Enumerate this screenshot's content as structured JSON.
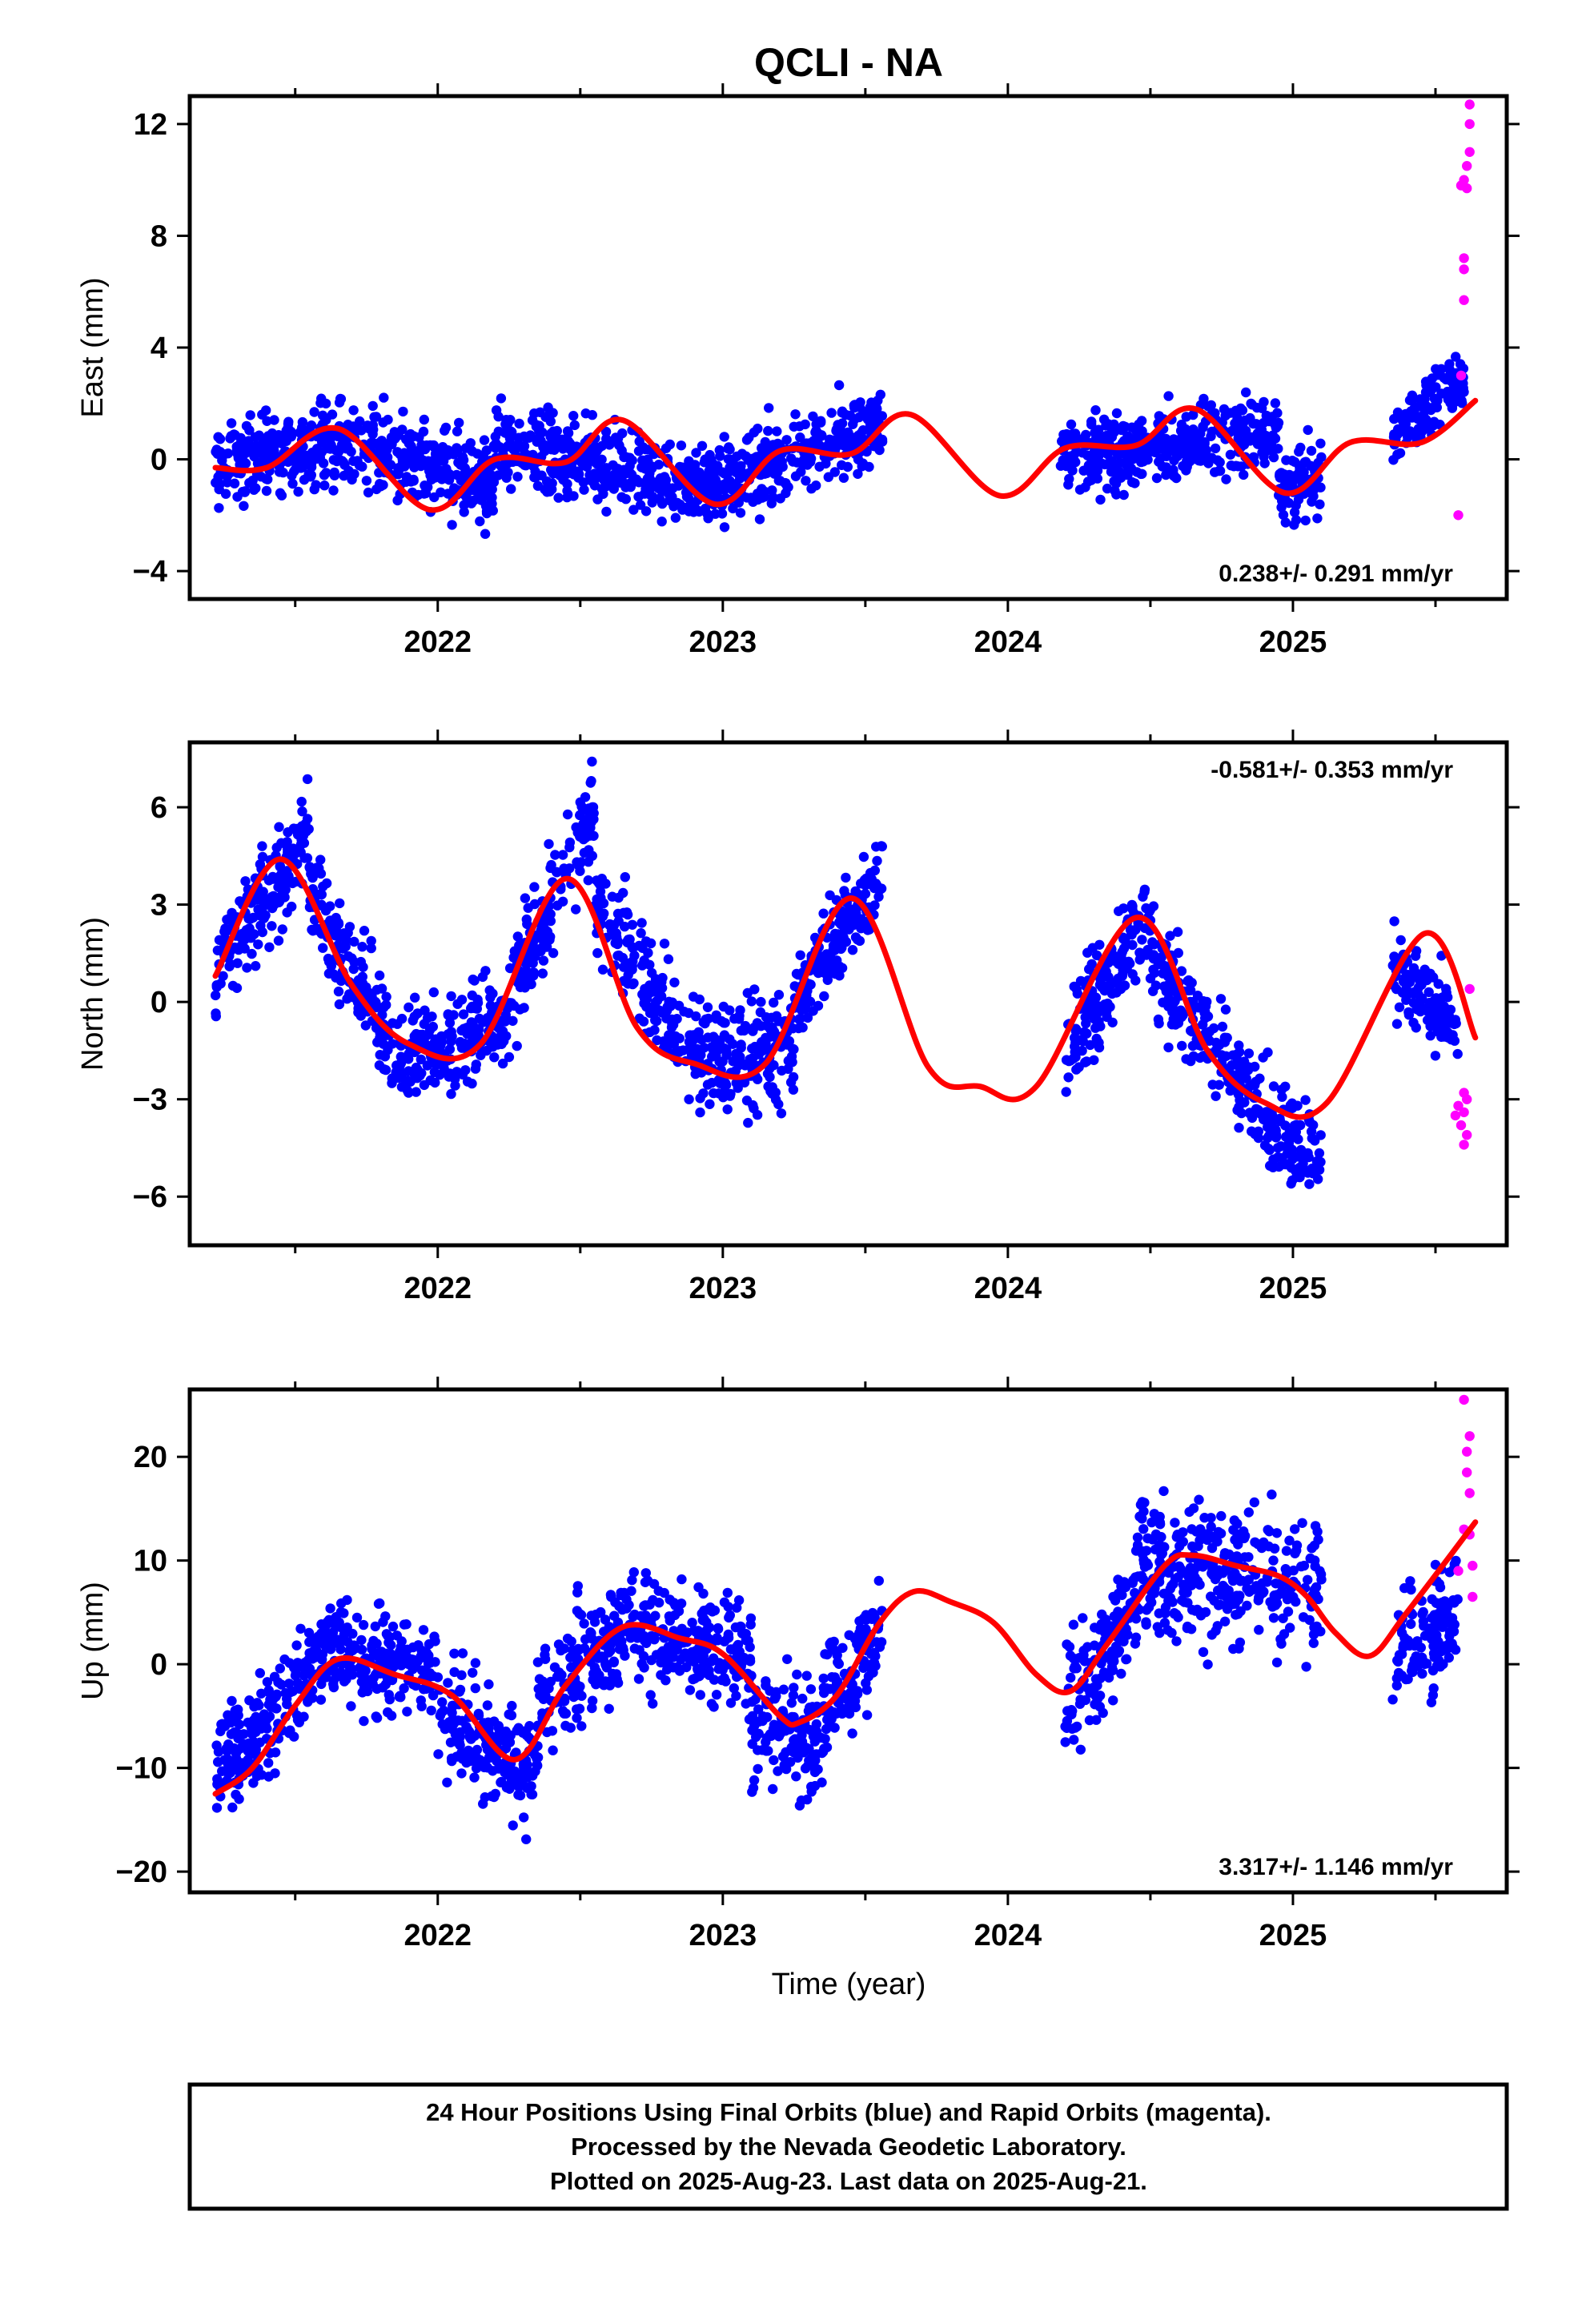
{
  "title": "QCLI - NA",
  "x_axis_label": "Time (year)",
  "footer": {
    "line1": "24 Hour Positions Using Final Orbits (blue) and Rapid Orbits (magenta).",
    "line2": "Processed by the Nevada Geodetic Laboratory.",
    "line3": "Plotted on 2025-Aug-23. Last data on 2025-Aug-21."
  },
  "colors": {
    "final_orbit": "#0000ff",
    "rapid_orbit": "#ff00ff",
    "model_fit": "#ff0000",
    "frame": "#000000"
  },
  "chart_data": [
    {
      "type": "scatter",
      "component": "east",
      "ylabel": "East (mm)",
      "xlim": [
        2021.13,
        2025.75
      ],
      "ylim": [
        -5,
        13
      ],
      "xticks": [
        2022,
        2023,
        2024,
        2025
      ],
      "yticks": [
        -4,
        0,
        4,
        8,
        12
      ],
      "rate": "0.238+/- 0.291 mm/yr",
      "fit": [
        [
          2021.22,
          -0.3
        ],
        [
          2021.4,
          -0.3
        ],
        [
          2021.65,
          1.1
        ],
        [
          2021.97,
          -1.8
        ],
        [
          2022.2,
          0.0
        ],
        [
          2022.45,
          -0.1
        ],
        [
          2022.65,
          1.4
        ],
        [
          2022.97,
          -1.6
        ],
        [
          2023.2,
          0.3
        ],
        [
          2023.45,
          0.2
        ],
        [
          2023.66,
          1.6
        ],
        [
          2023.97,
          -1.3
        ],
        [
          2024.2,
          0.4
        ],
        [
          2024.45,
          0.5
        ],
        [
          2024.66,
          1.8
        ],
        [
          2024.97,
          -1.2
        ],
        [
          2025.2,
          0.6
        ],
        [
          2025.45,
          0.6
        ],
        [
          2025.64,
          2.1
        ]
      ],
      "seasonal": {
        "amp": 1.45,
        "phase_year": 2021.65,
        "trend": 0.24
      },
      "final_segments": [
        {
          "x": [
            2021.22,
            2021.6
          ],
          "y": [
            -0.3,
            0.6
          ],
          "spread": 1.0
        },
        {
          "x": [
            2021.6,
            2022.2
          ],
          "y": [
            0.7,
            -0.8
          ],
          "spread": 1.1
        },
        {
          "x": [
            2022.2,
            2023.0
          ],
          "y": [
            0.5,
            -1.0
          ],
          "spread": 1.0
        },
        {
          "x": [
            2023.0,
            2023.56
          ],
          "y": [
            -0.8,
            1.3
          ],
          "spread": 1.0
        },
        {
          "x": [
            2024.18,
            2024.95
          ],
          "y": [
            0.0,
            1.0
          ],
          "spread": 0.9
        },
        {
          "x": [
            2024.95,
            2025.1
          ],
          "y": [
            -1.2,
            -0.5
          ],
          "spread": 0.9
        },
        {
          "x": [
            2025.35,
            2025.6
          ],
          "y": [
            0.8,
            3.0
          ],
          "spread": 0.8
        }
      ],
      "rapid": [
        [
          2025.58,
          -2.0
        ],
        [
          2025.59,
          3.0
        ],
        [
          2025.6,
          5.7
        ],
        [
          2025.6,
          6.8
        ],
        [
          2025.6,
          7.2
        ],
        [
          2025.61,
          9.7
        ],
        [
          2025.61,
          10.5
        ],
        [
          2025.62,
          11.0
        ],
        [
          2025.62,
          12.0
        ],
        [
          2025.62,
          12.7
        ],
        [
          2025.59,
          9.8
        ],
        [
          2025.6,
          10.0
        ]
      ]
    },
    {
      "type": "scatter",
      "component": "north",
      "ylabel": "North (mm)",
      "xlim": [
        2021.13,
        2025.75
      ],
      "ylim": [
        -7.5,
        8
      ],
      "xticks": [
        2022,
        2023,
        2024,
        2025
      ],
      "yticks": [
        -6,
        -3,
        0,
        3,
        6
      ],
      "rate": "-0.581+/- 0.353 mm/yr",
      "fit": [
        [
          2021.22,
          0.8
        ],
        [
          2021.45,
          4.4
        ],
        [
          2021.7,
          0.5
        ],
        [
          2021.9,
          -1.3
        ],
        [
          2022.15,
          -1.3
        ],
        [
          2022.45,
          3.8
        ],
        [
          2022.7,
          -0.8
        ],
        [
          2022.9,
          -1.9
        ],
        [
          2023.15,
          -1.9
        ],
        [
          2023.45,
          3.2
        ],
        [
          2023.72,
          -2.0
        ],
        [
          2023.9,
          -2.6
        ],
        [
          2024.1,
          -2.6
        ],
        [
          2024.45,
          2.6
        ],
        [
          2024.7,
          -1.5
        ],
        [
          2024.9,
          -3.1
        ],
        [
          2025.12,
          -3.1
        ],
        [
          2025.46,
          2.1
        ],
        [
          2025.64,
          -1.1
        ]
      ],
      "final_segments": [
        {
          "x": [
            2021.22,
            2021.55
          ],
          "y": [
            1.0,
            5.2
          ],
          "spread": 1.1
        },
        {
          "x": [
            2021.55,
            2021.85
          ],
          "y": [
            3.5,
            -1.5
          ],
          "spread": 1.0
        },
        {
          "x": [
            2021.85,
            2022.25
          ],
          "y": [
            -1.8,
            -0.5
          ],
          "spread": 1.1
        },
        {
          "x": [
            2022.25,
            2022.55
          ],
          "y": [
            0.0,
            6.0
          ],
          "spread": 1.2
        },
        {
          "x": [
            2022.55,
            2022.85
          ],
          "y": [
            3.0,
            -1.0
          ],
          "spread": 1.1
        },
        {
          "x": [
            2022.85,
            2023.25
          ],
          "y": [
            -1.5,
            -1.5
          ],
          "spread": 1.2
        },
        {
          "x": [
            2023.25,
            2023.56
          ],
          "y": [
            0.0,
            4.0
          ],
          "spread": 1.0
        },
        {
          "x": [
            2024.2,
            2024.5
          ],
          "y": [
            -1.5,
            2.8
          ],
          "spread": 1.1
        },
        {
          "x": [
            2024.5,
            2024.9
          ],
          "y": [
            1.5,
            -3.5
          ],
          "spread": 1.1
        },
        {
          "x": [
            2024.9,
            2025.1
          ],
          "y": [
            -3.5,
            -5.0
          ],
          "spread": 1.0
        },
        {
          "x": [
            2025.35,
            2025.58
          ],
          "y": [
            1.0,
            -1.0
          ],
          "spread": 0.9
        }
      ],
      "rapid": [
        [
          2025.57,
          -3.5
        ],
        [
          2025.58,
          -3.2
        ],
        [
          2025.59,
          -3.8
        ],
        [
          2025.6,
          -4.4
        ],
        [
          2025.6,
          -2.8
        ],
        [
          2025.61,
          -4.1
        ],
        [
          2025.61,
          -3.0
        ],
        [
          2025.62,
          0.4
        ],
        [
          2025.6,
          -3.4
        ]
      ]
    },
    {
      "type": "scatter",
      "component": "up",
      "ylabel": "Up (mm)",
      "xlim": [
        2021.13,
        2025.75
      ],
      "ylim": [
        -22,
        26.5
      ],
      "xticks": [
        2022,
        2023,
        2024,
        2025
      ],
      "yticks": [
        -20,
        -10,
        0,
        10,
        20
      ],
      "rate": "3.317+/- 1.146 mm/yr",
      "fit": [
        [
          2021.22,
          -12.5
        ],
        [
          2021.35,
          -10.0
        ],
        [
          2021.5,
          -4.0
        ],
        [
          2021.65,
          0.5
        ],
        [
          2021.85,
          -1.0
        ],
        [
          2022.05,
          -3.0
        ],
        [
          2022.27,
          -9.2
        ],
        [
          2022.45,
          -2.0
        ],
        [
          2022.65,
          3.6
        ],
        [
          2022.85,
          2.5
        ],
        [
          2023.0,
          1.0
        ],
        [
          2023.2,
          -5.0
        ],
        [
          2023.27,
          -5.6
        ],
        [
          2023.4,
          -3.0
        ],
        [
          2023.55,
          4.0
        ],
        [
          2023.67,
          7.0
        ],
        [
          2023.8,
          6.0
        ],
        [
          2023.95,
          4.0
        ],
        [
          2024.1,
          -1.0
        ],
        [
          2024.22,
          -2.6
        ],
        [
          2024.35,
          2.0
        ],
        [
          2024.55,
          9.5
        ],
        [
          2024.65,
          10.5
        ],
        [
          2024.8,
          9.5
        ],
        [
          2024.95,
          8.5
        ],
        [
          2025.05,
          6.5
        ],
        [
          2025.15,
          3.0
        ],
        [
          2025.27,
          0.8
        ],
        [
          2025.4,
          5.0
        ],
        [
          2025.64,
          13.7
        ]
      ],
      "final_segments": [
        {
          "x": [
            2021.22,
            2021.6
          ],
          "y": [
            -11.0,
            1.0
          ],
          "spread": 3.5
        },
        {
          "x": [
            2021.6,
            2022.0
          ],
          "y": [
            1.5,
            -1.0
          ],
          "spread": 3.5
        },
        {
          "x": [
            2022.0,
            2022.35
          ],
          "y": [
            -4.0,
            -11.0
          ],
          "spread": 4.0
        },
        {
          "x": [
            2022.35,
            2022.7
          ],
          "y": [
            -4.0,
            5.0
          ],
          "spread": 4.0
        },
        {
          "x": [
            2022.7,
            2023.1
          ],
          "y": [
            4.0,
            0.0
          ],
          "spread": 4.0
        },
        {
          "x": [
            2023.1,
            2023.35
          ],
          "y": [
            -6.0,
            -8.0
          ],
          "spread": 4.0
        },
        {
          "x": [
            2023.35,
            2023.56
          ],
          "y": [
            -4.0,
            3.0
          ],
          "spread": 4.0
        },
        {
          "x": [
            2024.2,
            2024.45
          ],
          "y": [
            -3.0,
            5.0
          ],
          "spread": 4.0
        },
        {
          "x": [
            2024.45,
            2025.1
          ],
          "y": [
            9.0,
            8.0
          ],
          "spread": 5.0
        },
        {
          "x": [
            2025.35,
            2025.58
          ],
          "y": [
            0.0,
            6.0
          ],
          "spread": 4.0
        }
      ],
      "rapid": [
        [
          2025.58,
          9.0
        ],
        [
          2025.6,
          25.5
        ],
        [
          2025.6,
          13.0
        ],
        [
          2025.61,
          20.5
        ],
        [
          2025.61,
          18.5
        ],
        [
          2025.62,
          16.5
        ],
        [
          2025.62,
          22.0
        ],
        [
          2025.62,
          12.5
        ],
        [
          2025.63,
          6.5
        ],
        [
          2025.63,
          9.5
        ]
      ]
    }
  ]
}
